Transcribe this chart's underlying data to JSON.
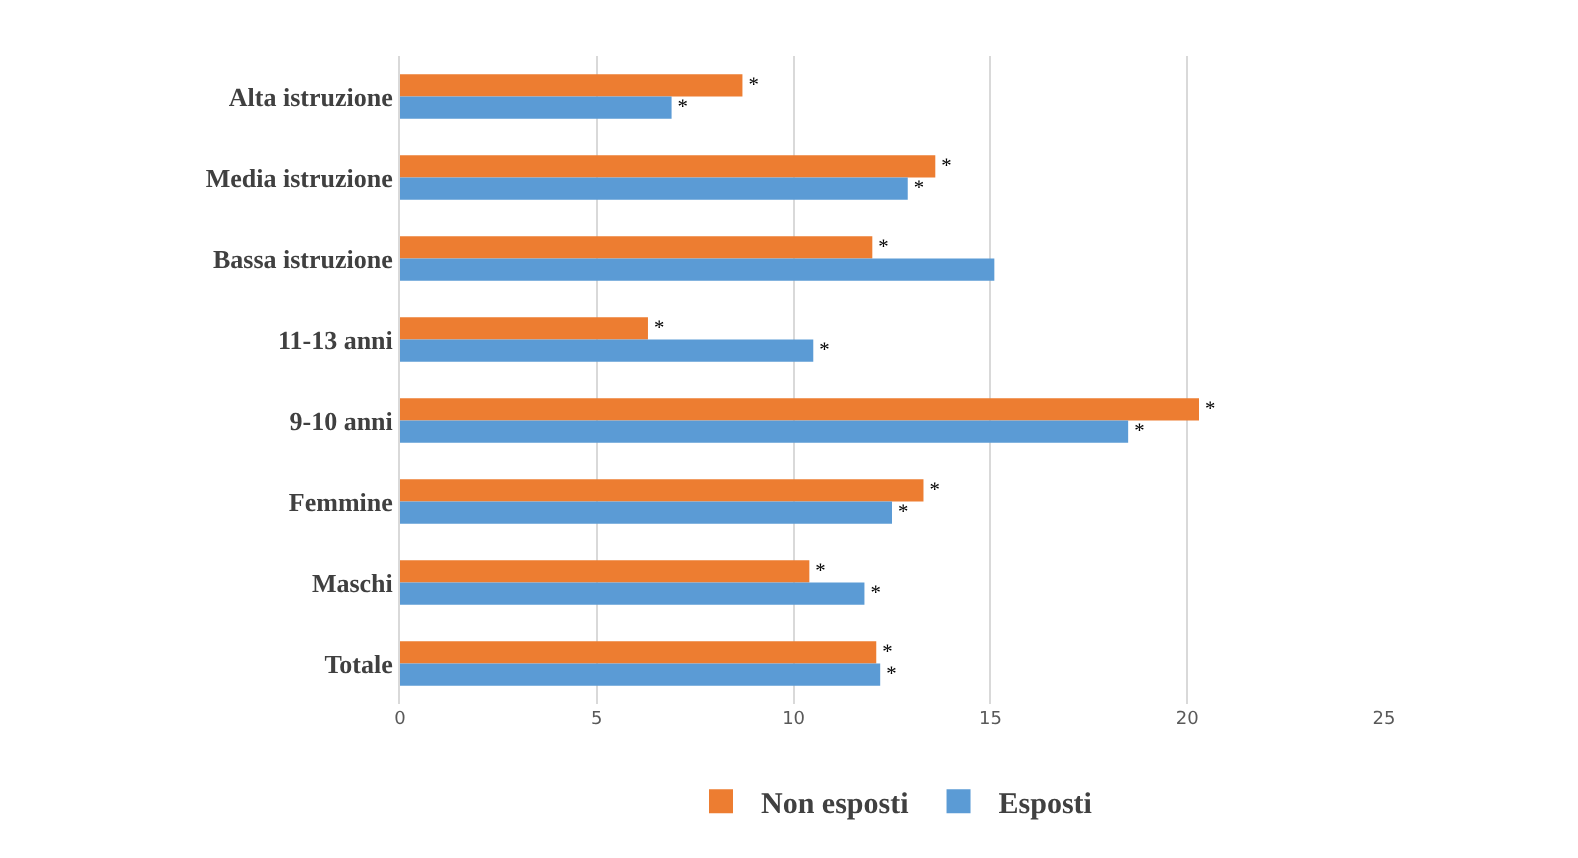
{
  "chart_data": {
    "type": "bar",
    "orientation": "horizontal",
    "categories": [
      "Alta istruzione",
      "Media istruzione",
      "Bassa istruzione",
      "11-13 anni",
      "9-10 anni",
      "Femmine",
      "Maschi",
      "Totale"
    ],
    "series": [
      {
        "name": "Non esposti",
        "color": "#ed7d31",
        "values": [
          8.7,
          13.6,
          12.0,
          6.3,
          20.3,
          13.3,
          10.4,
          12.1
        ],
        "value_labels": [
          "*",
          "*",
          "*",
          "*",
          "*",
          "*",
          "*",
          "*"
        ]
      },
      {
        "name": "Esposti",
        "color": "#5b9bd5",
        "values": [
          6.9,
          12.9,
          15.1,
          10.5,
          18.5,
          12.5,
          11.8,
          12.2
        ],
        "value_labels": [
          "*",
          "*",
          null,
          "*",
          "*",
          "*",
          "*",
          "*"
        ]
      }
    ],
    "xlim": [
      0,
      25
    ],
    "xticks": [
      0,
      5,
      10,
      15,
      20,
      25
    ],
    "grid": "x",
    "legend": "bottom"
  }
}
